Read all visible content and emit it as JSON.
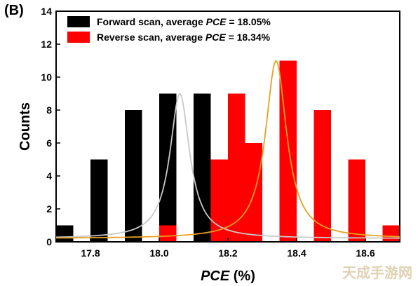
{
  "figure": {
    "panel_label": "(B)",
    "watermark": "天成手游网"
  },
  "chart_data": {
    "type": "bar",
    "xlabel_italic": "PCE",
    "xlabel_rest": " (%)",
    "ylabel": "Counts",
    "xlim": [
      17.7,
      18.7
    ],
    "ylim": [
      0,
      14
    ],
    "xticks": [
      17.8,
      18.0,
      18.2,
      18.4,
      18.6
    ],
    "xtick_labels": [
      "17.8",
      "18.0",
      "18.2",
      "18.4",
      "18.6"
    ],
    "yticks": [
      0,
      2,
      4,
      6,
      8,
      10,
      12,
      14
    ],
    "ytick_labels": [
      "0",
      "2",
      "4",
      "6",
      "8",
      "10",
      "12",
      "14"
    ],
    "bin_width": 0.05,
    "grid": false,
    "legend_position": "top-left",
    "series": [
      {
        "name_prefix": "Forward scan, average ",
        "name_italic": "PCE",
        "name_suffix": " = 18.05%",
        "color": "#000000",
        "fit_color": "#c8c8c8",
        "bins": [
          17.675,
          17.725,
          17.775,
          17.825,
          17.875,
          17.925,
          17.975,
          18.025,
          18.075,
          18.125,
          18.175,
          18.225,
          18.275,
          18.325,
          18.375,
          18.425
        ],
        "counts": [
          1,
          1,
          0,
          5,
          0,
          8,
          0,
          9,
          0,
          9,
          0,
          7,
          0,
          0,
          1,
          0
        ],
        "fit": {
          "center": 18.06,
          "amplitude": 9,
          "width": 0.07,
          "offset": 0.2
        }
      },
      {
        "name_prefix": "Reverse scan, average ",
        "name_italic": "PCE",
        "name_suffix": " = 18.34%",
        "color": "#ff0000",
        "fit_color": "#e8a020",
        "bins": [
          18.025,
          18.075,
          18.125,
          18.175,
          18.225,
          18.275,
          18.325,
          18.375,
          18.425,
          18.475,
          18.525,
          18.575,
          18.625,
          18.675
        ],
        "counts": [
          1,
          0,
          0,
          5,
          9,
          6,
          0,
          11,
          0,
          8,
          0,
          5,
          0,
          1
        ],
        "fit": {
          "center": 18.34,
          "amplitude": 11,
          "width": 0.075,
          "offset": 0.2
        }
      }
    ]
  }
}
